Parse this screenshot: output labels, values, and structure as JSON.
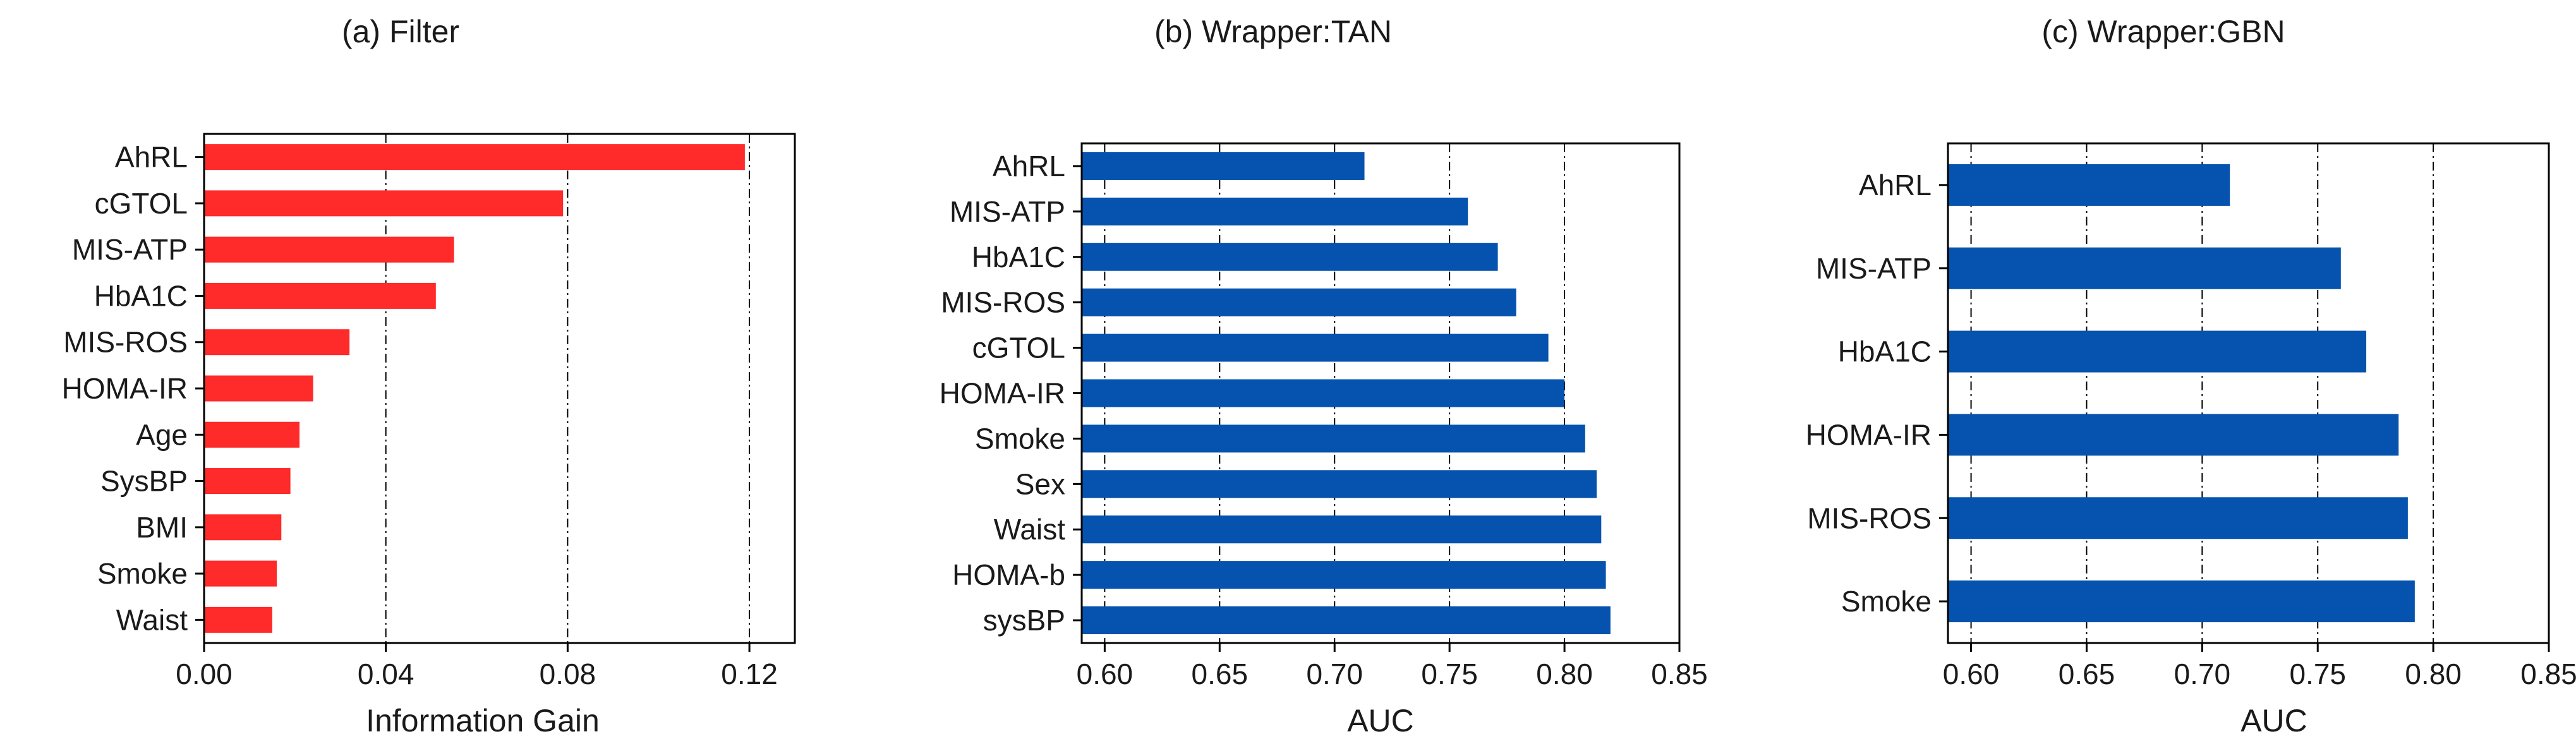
{
  "colors": {
    "filter_bar": "#ff2a2a",
    "wrapper_bar": "#0553ae",
    "axis": "#000000",
    "grid": "#000000"
  },
  "chart_data": [
    {
      "type": "bar",
      "orientation": "horizontal",
      "title": "(a) Filter",
      "xlabel": "Information Gain",
      "ylabel": "",
      "categories": [
        "AhRL",
        "cGTOL",
        "MIS-ATP",
        "HbA1C",
        "MIS-ROS",
        "HOMA-IR",
        "Age",
        "SysBP",
        "BMI",
        "Smoke",
        "Waist"
      ],
      "values": [
        0.119,
        0.079,
        0.055,
        0.051,
        0.032,
        0.024,
        0.021,
        0.019,
        0.017,
        0.016,
        0.015
      ],
      "xlim": [
        0.0,
        0.13
      ],
      "xticks": [
        0.0,
        0.04,
        0.08,
        0.12
      ],
      "xtick_labels": [
        "0.00",
        "0.04",
        "0.08",
        "0.12"
      ],
      "grid": "vertical dash-dot",
      "legend": "none",
      "bar_color": "#ff2a2a"
    },
    {
      "type": "bar",
      "orientation": "horizontal",
      "title": "(b) Wrapper:TAN",
      "xlabel": "AUC",
      "ylabel": "",
      "categories": [
        "AhRL",
        "MIS-ATP",
        "HbA1C",
        "MIS-ROS",
        "cGTOL",
        "HOMA-IR",
        "Smoke",
        "Sex",
        "Waist",
        "HOMA-b",
        "sysBP"
      ],
      "values": [
        0.713,
        0.758,
        0.771,
        0.779,
        0.793,
        0.8,
        0.809,
        0.814,
        0.816,
        0.818,
        0.82
      ],
      "xlim": [
        0.59,
        0.85
      ],
      "xticks": [
        0.6,
        0.65,
        0.7,
        0.75,
        0.8,
        0.85
      ],
      "xtick_labels": [
        "0.60",
        "0.65",
        "0.70",
        "0.75",
        "0.80",
        "0.85"
      ],
      "grid": "vertical dash-dot",
      "legend": "none",
      "bar_color": "#0553ae"
    },
    {
      "type": "bar",
      "orientation": "horizontal",
      "title": "(c) Wrapper:GBN",
      "xlabel": "AUC",
      "ylabel": "",
      "categories": [
        "AhRL",
        "MIS-ATP",
        "HbA1C",
        "HOMA-IR",
        "MIS-ROS",
        "Smoke"
      ],
      "values": [
        0.712,
        0.76,
        0.771,
        0.785,
        0.789,
        0.792
      ],
      "xlim": [
        0.59,
        0.85
      ],
      "xticks": [
        0.6,
        0.65,
        0.7,
        0.75,
        0.8,
        0.85
      ],
      "xtick_labels": [
        "0.60",
        "0.65",
        "0.70",
        "0.75",
        "0.80",
        "0.85"
      ],
      "grid": "vertical dash-dot",
      "legend": "none",
      "bar_color": "#0553ae"
    }
  ]
}
